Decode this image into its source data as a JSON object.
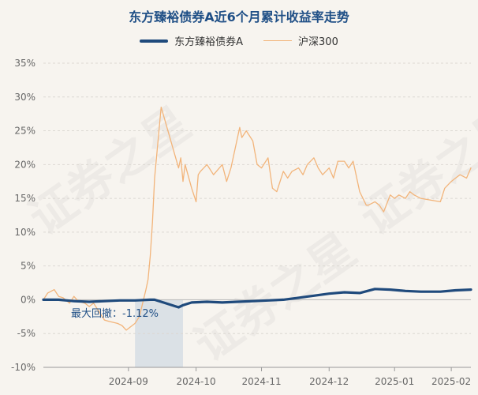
{
  "title": "东方臻裕债券A近6个月累计收益率走势",
  "watermark": "证券之星",
  "legend": [
    {
      "name": "东方臻裕债券A",
      "color": "#1f4a7c"
    },
    {
      "name": "沪深300",
      "color": "#f2b47a"
    }
  ],
  "annotation": {
    "text": "最大回撤：-1.12%"
  },
  "chart_data": {
    "type": "line",
    "title": "东方臻裕债券A近6个月累计收益率走势",
    "ylim": [
      -10,
      35
    ],
    "yticks": [
      "35%",
      "30%",
      "25%",
      "20%",
      "15%",
      "10%",
      "5%",
      "0%",
      "-5%",
      "-10%"
    ],
    "xticks": [
      "2024-09",
      "2024-10",
      "2024-11",
      "2024-12",
      "2025-01",
      "2025-02"
    ],
    "grid": true,
    "legend_position": "top",
    "series": [
      {
        "name": "东方臻裕债券A",
        "x": [
          "2024-08-07",
          "2024-08-14",
          "2024-08-21",
          "2024-08-28",
          "2024-09-04",
          "2024-09-11",
          "2024-09-18",
          "2024-09-25",
          "2024-09-27",
          "2024-09-30",
          "2024-10-08",
          "2024-10-10",
          "2024-10-14",
          "2024-10-21",
          "2024-10-28",
          "2024-11-04",
          "2024-11-11",
          "2024-11-18",
          "2024-11-25",
          "2024-12-02",
          "2024-12-09",
          "2024-12-16",
          "2024-12-23",
          "2024-12-30",
          "2025-01-06",
          "2025-01-13",
          "2025-01-20",
          "2025-01-27",
          "2025-02-05",
          "2025-02-12",
          "2025-02-19"
        ],
        "values": [
          0.0,
          0.0,
          -0.2,
          -0.3,
          -0.2,
          -0.1,
          -0.1,
          0.0,
          0.0,
          -0.3,
          -1.12,
          -0.8,
          -0.4,
          -0.3,
          -0.4,
          -0.3,
          -0.2,
          -0.1,
          0.0,
          0.3,
          0.6,
          0.9,
          1.1,
          1.0,
          1.6,
          1.5,
          1.3,
          1.2,
          1.2,
          1.4,
          1.5
        ]
      },
      {
        "name": "沪深300",
        "x": [
          "2024-08-07",
          "2024-08-09",
          "2024-08-12",
          "2024-08-14",
          "2024-08-16",
          "2024-08-19",
          "2024-08-21",
          "2024-08-23",
          "2024-08-26",
          "2024-08-28",
          "2024-08-30",
          "2024-09-02",
          "2024-09-04",
          "2024-09-06",
          "2024-09-10",
          "2024-09-12",
          "2024-09-14",
          "2024-09-18",
          "2024-09-20",
          "2024-09-23",
          "2024-09-24",
          "2024-09-25",
          "2024-09-26",
          "2024-09-27",
          "2024-09-30",
          "2024-10-08",
          "2024-10-09",
          "2024-10-10",
          "2024-10-11",
          "2024-10-14",
          "2024-10-15",
          "2024-10-16",
          "2024-10-17",
          "2024-10-18",
          "2024-10-21",
          "2024-10-22",
          "2024-10-24",
          "2024-10-28",
          "2024-10-30",
          "2024-11-01",
          "2024-11-05",
          "2024-11-06",
          "2024-11-08",
          "2024-11-11",
          "2024-11-13",
          "2024-11-15",
          "2024-11-18",
          "2024-11-20",
          "2024-11-22",
          "2024-11-25",
          "2024-11-27",
          "2024-11-29",
          "2024-12-02",
          "2024-12-04",
          "2024-12-06",
          "2024-12-09",
          "2024-12-11",
          "2024-12-13",
          "2024-12-16",
          "2024-12-18",
          "2024-12-20",
          "2024-12-23",
          "2024-12-25",
          "2024-12-27",
          "2024-12-30",
          "2025-01-02",
          "2025-01-03",
          "2025-01-06",
          "2025-01-08",
          "2025-01-10",
          "2025-01-13",
          "2025-01-15",
          "2025-01-17",
          "2025-01-20",
          "2025-01-22",
          "2025-01-24",
          "2025-01-27",
          "2025-02-05",
          "2025-02-07",
          "2025-02-10",
          "2025-02-12",
          "2025-02-14",
          "2025-02-17",
          "2025-02-19"
        ],
        "values": [
          0.0,
          1.0,
          1.5,
          0.5,
          0.3,
          -0.5,
          0.5,
          -0.2,
          -0.5,
          -1.0,
          -0.5,
          -2.0,
          -3.0,
          -3.2,
          -3.5,
          -3.8,
          -4.5,
          -3.5,
          -2.5,
          1.5,
          3.0,
          6.5,
          11.5,
          18.0,
          28.5,
          19.5,
          21.0,
          17.5,
          20.0,
          16.5,
          15.5,
          14.5,
          18.5,
          19.0,
          20.0,
          19.5,
          18.5,
          20.0,
          17.5,
          19.5,
          25.5,
          24.0,
          25.0,
          23.5,
          20.0,
          19.5,
          21.0,
          16.5,
          16.0,
          19.0,
          18.0,
          19.0,
          19.5,
          18.5,
          20.0,
          21.0,
          19.5,
          18.5,
          19.5,
          18.0,
          20.5,
          20.5,
          19.5,
          20.5,
          16.0,
          14.0,
          14.0,
          14.5,
          14.0,
          13.0,
          15.5,
          15.0,
          15.5,
          15.0,
          16.0,
          15.5,
          15.0,
          14.5,
          16.5,
          17.5,
          18.0,
          18.5,
          18.0,
          19.5
        ]
      }
    ],
    "drawdown_shade": {
      "from": "2024-09-18",
      "to": "2024-10-10"
    }
  }
}
